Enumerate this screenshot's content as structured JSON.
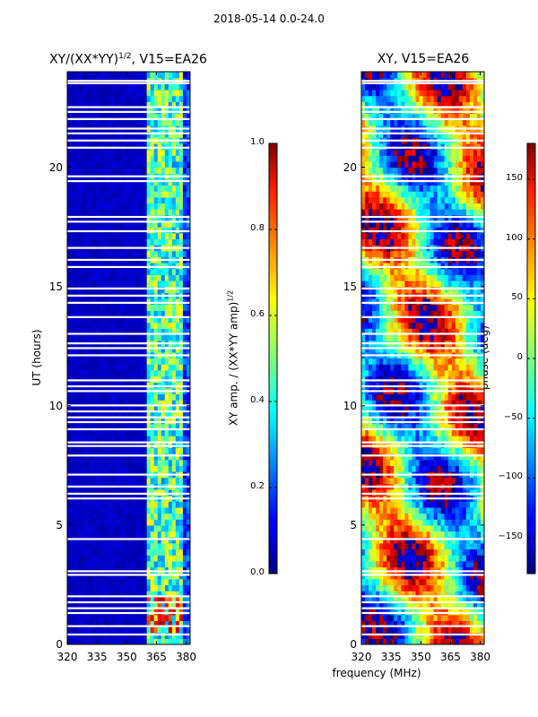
{
  "figure": {
    "suptitle": "2018-05-14 0.0-24.0",
    "xlabel": "frequency (MHz)"
  },
  "chart_data": [
    {
      "type": "heatmap",
      "title_main": "XY/(XX*YY)",
      "title_sup": "1/2",
      "title_tail": ", V15=EA26",
      "ylabel": "UT (hours)",
      "xlabel": "",
      "x_range": [
        320,
        382
      ],
      "y_range": [
        0,
        24
      ],
      "x_ticks": [
        "320",
        "335",
        "350",
        "365",
        "380"
      ],
      "x_tick_values": [
        320,
        335,
        350,
        365,
        380
      ],
      "y_ticks": [
        "0",
        "5",
        "10",
        "15",
        "20"
      ],
      "y_tick_values": [
        0,
        5,
        10,
        15,
        20
      ],
      "colorbar": {
        "label_main": "XY amp. / (XX*YY amp)",
        "label_sup": "1/2",
        "range": [
          0.0,
          1.0
        ],
        "ticks": [
          "0.0",
          "0.2",
          "0.4",
          "0.6",
          "0.8",
          "1.0"
        ],
        "tick_values": [
          0.0,
          0.2,
          0.4,
          0.6,
          0.8,
          1.0
        ],
        "colormap": "jet"
      },
      "description_values": "low amplitude (~0.05) below 360 MHz, high amplitude (0.3-0.7) in 360-378 MHz band, peaks ~0.85 near 365-375 MHz around UT 1-2 h"
    },
    {
      "type": "heatmap",
      "title": "XY, V15=EA26",
      "ylabel": "",
      "xlabel": "",
      "x_range": [
        320,
        382
      ],
      "y_range": [
        0,
        24
      ],
      "x_ticks": [
        "320",
        "335",
        "350",
        "365",
        "380"
      ],
      "x_tick_values": [
        320,
        335,
        350,
        365,
        380
      ],
      "y_ticks": [
        "0",
        "5",
        "10",
        "15",
        "20"
      ],
      "y_tick_values": [
        0,
        5,
        10,
        15,
        20
      ],
      "colorbar": {
        "label": "phase (deg)",
        "range": [
          -180,
          180
        ],
        "ticks": [
          "−150",
          "−100",
          "−50",
          "0",
          "50",
          "100",
          "150"
        ],
        "tick_values": [
          -150,
          -100,
          -50,
          0,
          50,
          100,
          150
        ],
        "colormap": "jet"
      }
    }
  ],
  "flag_gaps_ut": [
    0.4,
    0.75,
    1.3,
    1.5,
    1.75,
    2.0,
    2.9,
    3.05,
    4.4,
    6.1,
    6.3,
    6.6,
    7.1,
    7.9,
    8.3,
    8.45,
    9.0,
    9.3,
    9.5,
    9.75,
    10.0,
    10.6,
    10.8,
    11.05,
    12.1,
    12.4,
    12.6,
    13.0,
    13.7,
    14.3,
    14.6,
    14.9,
    15.8,
    16.1,
    16.6,
    17.3,
    17.7,
    17.9,
    19.4,
    19.6,
    20.8,
    21.1,
    21.4,
    21.6,
    22.0,
    22.3,
    22.5,
    23.5,
    23.6
  ]
}
